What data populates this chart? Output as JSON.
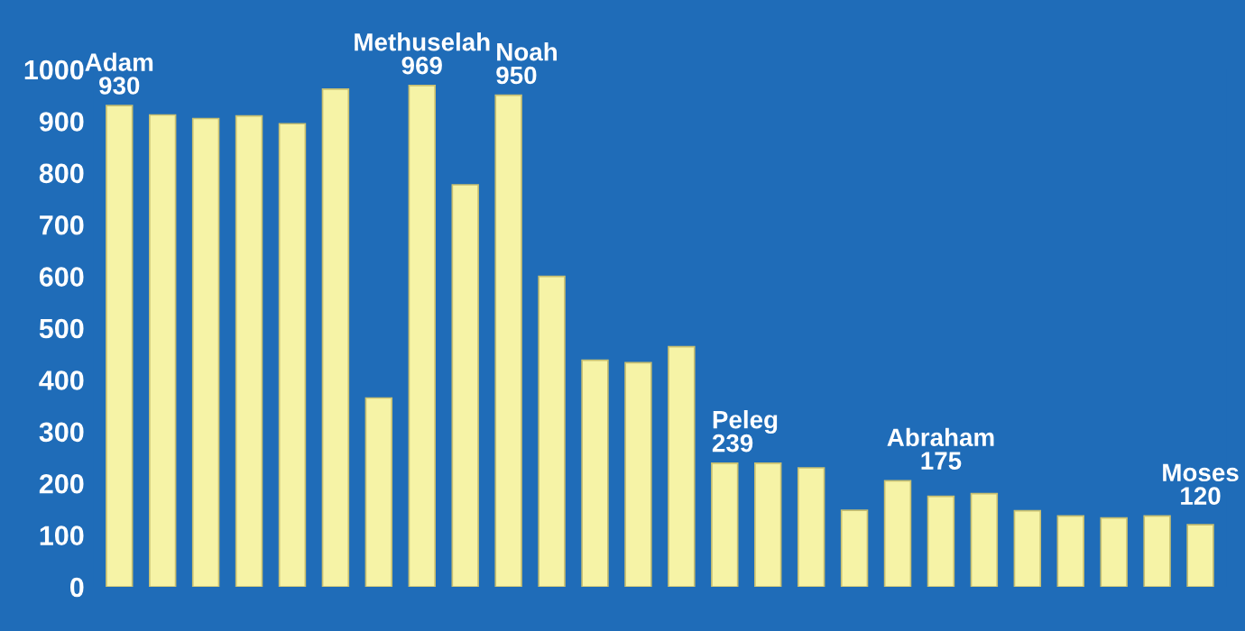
{
  "chart_data": {
    "type": "bar",
    "categories": [
      null,
      null,
      null,
      null,
      null,
      null,
      null,
      null,
      null,
      null,
      null,
      null,
      null,
      null,
      null,
      null,
      null,
      null,
      null,
      null,
      null,
      null,
      null,
      null,
      null,
      null
    ],
    "values": [
      930,
      912,
      905,
      910,
      895,
      962,
      365,
      969,
      777,
      950,
      600,
      438,
      433,
      464,
      239,
      239,
      230,
      148,
      205,
      175,
      180,
      147,
      137,
      133,
      137,
      120
    ],
    "value_labels": [
      "Adam\n930",
      null,
      null,
      null,
      null,
      null,
      null,
      "Methuselah\n969",
      null,
      "Noah\n950",
      null,
      null,
      null,
      null,
      "Peleg\n239",
      null,
      null,
      null,
      null,
      "Abraham\n175",
      null,
      null,
      null,
      null,
      null,
      "Moses\n120"
    ],
    "color": "#f6f3a6",
    "ylim": [
      0,
      1000
    ],
    "yticks": [
      0,
      100,
      200,
      300,
      400,
      500,
      600,
      700,
      800,
      900,
      1000
    ],
    "grid": false
  }
}
